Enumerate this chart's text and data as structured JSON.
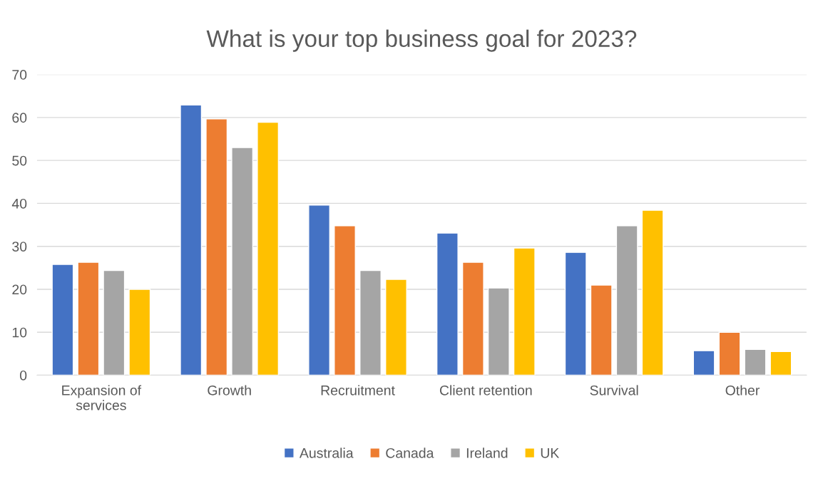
{
  "chart_data": {
    "type": "bar",
    "title": "What is your top business goal for 2023?",
    "categories": [
      "Expansion of services",
      "Growth",
      "Recruitment",
      "Client retention",
      "Survival",
      "Other"
    ],
    "series": [
      {
        "name": "Australia",
        "color": "#4472c4",
        "values": [
          25.8,
          62.9,
          39.6,
          33.1,
          28.6,
          5.7
        ]
      },
      {
        "name": "Canada",
        "color": "#ed7d31",
        "values": [
          26.3,
          59.7,
          34.8,
          26.3,
          21.0,
          10.0
        ]
      },
      {
        "name": "Ireland",
        "color": "#a5a5a5",
        "values": [
          24.4,
          53.0,
          24.4,
          20.3,
          34.8,
          6.0
        ]
      },
      {
        "name": "UK",
        "color": "#ffc000",
        "values": [
          20.0,
          58.9,
          22.3,
          29.6,
          38.4,
          5.5
        ]
      }
    ],
    "ylim": [
      0,
      70
    ],
    "yticks": [
      0,
      10,
      20,
      30,
      40,
      50,
      60,
      70
    ],
    "grid": "y",
    "legend": "bottom"
  }
}
